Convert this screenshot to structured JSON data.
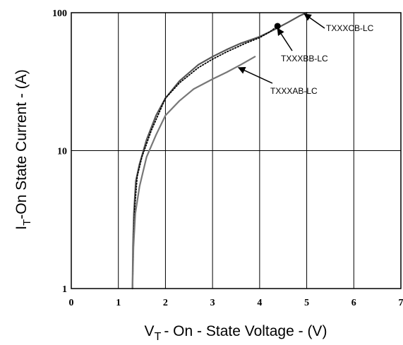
{
  "chart_data": {
    "type": "line",
    "title": "",
    "xlabel_main": "V",
    "xlabel_sub": "T",
    "xlabel_rest": "- On - State Voltage - (V)",
    "ylabel_main": "I",
    "ylabel_sub": "T",
    "ylabel_rest": "-On State Current - (A)",
    "xlim": [
      0,
      7
    ],
    "ylim": [
      1,
      100
    ],
    "yscale": "log",
    "grid": true,
    "xticks": [
      "0",
      "1",
      "2",
      "3",
      "4",
      "5",
      "6",
      "7"
    ],
    "yticks": [
      {
        "value": 1,
        "label": "1"
      },
      {
        "value": 10,
        "label": "10"
      },
      {
        "value": 100,
        "label": "100"
      }
    ],
    "series": [
      {
        "name": "TXXXCB-LC",
        "style": "solid",
        "color": "#555555",
        "x": [
          1.3,
          1.31,
          1.33,
          1.37,
          1.45,
          1.6,
          1.8,
          2.0,
          2.3,
          2.7,
          3.0,
          3.3,
          3.6,
          4.0,
          4.3,
          4.6,
          4.85,
          5.0
        ],
        "y": [
          1.0,
          2.0,
          3.5,
          6.0,
          8.0,
          12.0,
          18.0,
          24.0,
          32.0,
          42.0,
          48.0,
          54.0,
          60.0,
          67.0,
          75.0,
          85.0,
          95.0,
          100.0
        ]
      },
      {
        "name": "TXXXBB-LC",
        "style": "dotted",
        "color": "#000000",
        "x": [
          1.3,
          1.32,
          1.35,
          1.4,
          1.5,
          1.7,
          2.0,
          2.3,
          2.7,
          3.0,
          3.3,
          3.7,
          4.0,
          4.2,
          4.38
        ],
        "y": [
          1.0,
          2.0,
          4.0,
          6.5,
          9.0,
          14.0,
          24.0,
          31.0,
          40.0,
          46.0,
          52.0,
          60.0,
          66.0,
          72.0,
          80.0
        ]
      },
      {
        "name": "TXXXAB-LC",
        "style": "solid",
        "color": "#777777",
        "x": [
          1.3,
          1.32,
          1.36,
          1.45,
          1.6,
          1.8,
          2.0,
          2.3,
          2.6,
          3.0,
          3.3,
          3.6,
          3.9
        ],
        "y": [
          1.0,
          2.0,
          3.5,
          5.5,
          9.0,
          13.0,
          18.0,
          23.0,
          28.0,
          33.0,
          37.0,
          42.0,
          48.0
        ]
      }
    ],
    "marker": {
      "x": 4.38,
      "y": 80
    },
    "annotations": [
      {
        "text": "TXXXCB-LC",
        "point": {
          "x": 4.95,
          "y": 98
        }
      },
      {
        "text": "TXXXBB-LC",
        "point": {
          "x": 4.38,
          "y": 77
        }
      },
      {
        "text": "TXXXAB-LC",
        "point": {
          "x": 3.55,
          "y": 40
        }
      }
    ]
  }
}
